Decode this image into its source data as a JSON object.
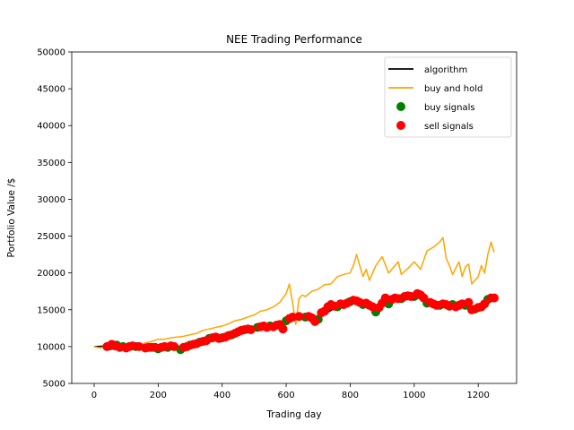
{
  "chart_data": {
    "type": "line",
    "title": "NEE Trading Performance",
    "xlabel": "Trading day",
    "ylabel": "Portfolio Value /$",
    "xlim": [
      -70,
      1320
    ],
    "ylim": [
      5000,
      50000
    ],
    "x_ticks": [
      0,
      200,
      400,
      600,
      800,
      1000,
      1200
    ],
    "y_ticks": [
      5000,
      10000,
      15000,
      20000,
      25000,
      30000,
      35000,
      40000,
      45000,
      50000
    ],
    "grid": false,
    "legend_position": "top-right",
    "colors": {
      "algorithm": "#000000",
      "buy_and_hold": "#ffa500",
      "buy_signals": "#008000",
      "sell_signals": "#ff0000"
    },
    "series": [
      {
        "name": "algorithm",
        "kind": "line",
        "x": [
          0,
          50,
          100,
          150,
          200,
          250,
          300,
          350,
          400,
          450,
          500,
          550,
          600,
          650,
          700,
          750,
          800,
          850,
          900,
          950,
          1000,
          1050,
          1100,
          1150,
          1200,
          1250
        ],
        "y": [
          10000,
          10100,
          9900,
          10000,
          9800,
          9900,
          10200,
          10800,
          11200,
          11800,
          12400,
          12800,
          13400,
          14000,
          13800,
          15200,
          16100,
          15600,
          15500,
          16300,
          17000,
          16000,
          15600,
          15700,
          15300,
          16500
        ]
      },
      {
        "name": "buy and hold",
        "kind": "line",
        "x": [
          0,
          20,
          40,
          60,
          80,
          100,
          120,
          140,
          160,
          180,
          200,
          220,
          240,
          260,
          280,
          300,
          320,
          340,
          360,
          380,
          400,
          420,
          440,
          460,
          480,
          500,
          520,
          540,
          560,
          580,
          600,
          610,
          620,
          630,
          640,
          650,
          660,
          680,
          700,
          720,
          740,
          760,
          780,
          800,
          810,
          820,
          840,
          850,
          860,
          880,
          900,
          920,
          940,
          950,
          960,
          980,
          1000,
          1010,
          1020,
          1040,
          1060,
          1080,
          1090,
          1100,
          1110,
          1120,
          1140,
          1150,
          1160,
          1170,
          1180,
          1200,
          1210,
          1220,
          1230,
          1240,
          1250
        ],
        "y": [
          10000,
          9800,
          10200,
          10300,
          10100,
          10000,
          10100,
          10200,
          10500,
          10700,
          11000,
          11000,
          11200,
          11300,
          11400,
          11600,
          11800,
          12200,
          12400,
          12600,
          12800,
          13100,
          13500,
          13700,
          14000,
          14300,
          14800,
          15000,
          15400,
          16000,
          17200,
          18500,
          16000,
          13000,
          16500,
          17000,
          16800,
          17500,
          17800,
          18400,
          18500,
          19500,
          19800,
          20000,
          21000,
          22500,
          19500,
          20500,
          19000,
          21000,
          22200,
          20000,
          21000,
          21500,
          19800,
          20600,
          21500,
          21000,
          20500,
          23000,
          23500,
          24200,
          24800,
          22000,
          21000,
          19800,
          21500,
          19500,
          20800,
          21200,
          18500,
          19500,
          21000,
          20000,
          22500,
          24200,
          22800
        ]
      },
      {
        "name": "buy signals",
        "kind": "scatter",
        "x": [
          50,
          70,
          90,
          130,
          180,
          200,
          230,
          270,
          300,
          330,
          360,
          400,
          430,
          470,
          510,
          550,
          600,
          660,
          700,
          760,
          800,
          840,
          880,
          920,
          960,
          1000,
          1040,
          1080,
          1120,
          1160,
          1190,
          1230
        ],
        "y": [
          10100,
          10200,
          10000,
          10000,
          9900,
          9700,
          9900,
          9600,
          10200,
          10600,
          11100,
          11200,
          11600,
          12300,
          12600,
          12800,
          13500,
          14000,
          13700,
          15400,
          16100,
          15700,
          14700,
          15800,
          16500,
          16800,
          15900,
          15600,
          15700,
          15600,
          15100,
          16400
        ]
      },
      {
        "name": "sell signals",
        "kind": "scatter",
        "x": [
          40,
          55,
          65,
          80,
          100,
          110,
          120,
          140,
          160,
          170,
          190,
          210,
          220,
          240,
          250,
          280,
          290,
          310,
          320,
          340,
          350,
          370,
          380,
          390,
          410,
          420,
          440,
          450,
          460,
          480,
          490,
          520,
          530,
          540,
          560,
          570,
          580,
          590,
          610,
          620,
          640,
          670,
          680,
          690,
          710,
          720,
          730,
          740,
          750,
          770,
          780,
          790,
          810,
          820,
          830,
          850,
          860,
          870,
          890,
          900,
          910,
          930,
          940,
          950,
          970,
          980,
          990,
          1010,
          1020,
          1030,
          1050,
          1060,
          1070,
          1090,
          1100,
          1110,
          1130,
          1140,
          1150,
          1170,
          1180,
          1200,
          1210,
          1220,
          1240,
          1250
        ],
        "y": [
          10000,
          10300,
          10100,
          9900,
          9800,
          10000,
          10100,
          10000,
          9800,
          9900,
          9900,
          9900,
          10000,
          10100,
          10000,
          9900,
          10000,
          10300,
          10400,
          10700,
          10800,
          11200,
          11300,
          11100,
          11300,
          11500,
          11800,
          12000,
          12200,
          12400,
          12300,
          12700,
          12800,
          12600,
          12700,
          12900,
          13000,
          12400,
          13800,
          14000,
          14100,
          14100,
          13900,
          13400,
          14600,
          14800,
          15400,
          15700,
          15500,
          15800,
          15700,
          15900,
          16300,
          16200,
          16000,
          15900,
          15600,
          15400,
          15300,
          15900,
          16600,
          16400,
          16600,
          16500,
          16800,
          16900,
          16800,
          17200,
          17000,
          16600,
          16000,
          15800,
          15600,
          15800,
          15700,
          15500,
          15400,
          15600,
          15800,
          16000,
          15000,
          15300,
          15400,
          15800,
          16600,
          16600
        ]
      }
    ]
  }
}
